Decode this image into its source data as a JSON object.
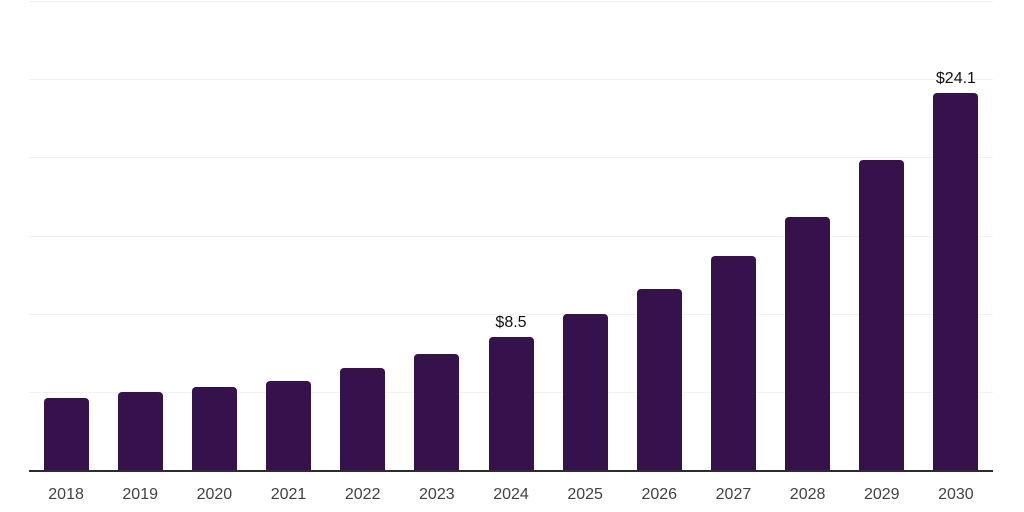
{
  "chart_data": {
    "type": "bar",
    "title": "",
    "xlabel": "",
    "ylabel": "",
    "categories": [
      "2018",
      "2019",
      "2020",
      "2021",
      "2022",
      "2023",
      "2024",
      "2025",
      "2026",
      "2027",
      "2028",
      "2029",
      "2030"
    ],
    "values": [
      4.6,
      5.0,
      5.3,
      5.7,
      6.5,
      7.4,
      8.5,
      10.0,
      11.6,
      13.7,
      16.2,
      19.8,
      24.1
    ],
    "data_labels": [
      null,
      null,
      null,
      null,
      null,
      null,
      "$8.5",
      null,
      null,
      null,
      null,
      null,
      "$24.1"
    ],
    "ylim": [
      0,
      30
    ],
    "grid": true,
    "gridline_values": [
      5,
      10,
      15,
      20,
      25,
      30
    ],
    "legend": "none",
    "colors": {
      "background": "#ffffff",
      "bar": "#36124d",
      "gridline": "#f2f2f2",
      "axis": "#2d2d2d",
      "tick_label": "#424242",
      "data_label": "#111111"
    }
  }
}
